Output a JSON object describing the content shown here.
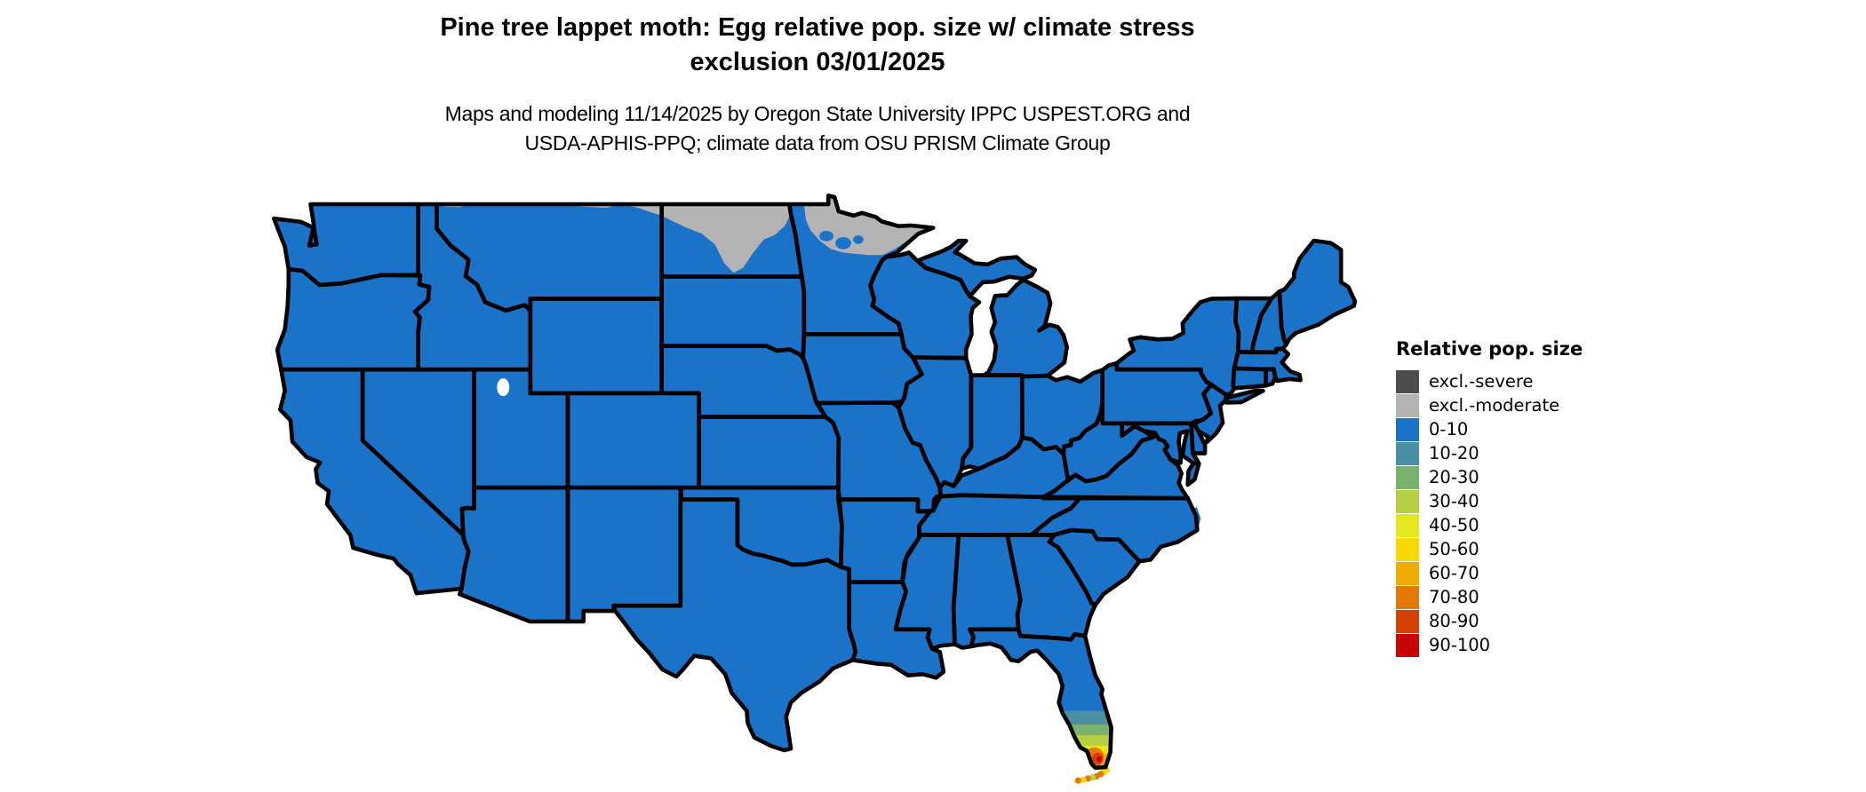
{
  "title": {
    "line1": "Pine tree lappet moth: Egg relative pop. size w/ climate stress",
    "line2": "exclusion 03/01/2025"
  },
  "subtitle": {
    "line1": "Maps and modeling 11/14/2025 by Oregon State University IPPC USPEST.ORG and",
    "line2": "USDA-APHIS-PPQ; climate data from OSU PRISM Climate Group"
  },
  "legend": {
    "title": "Relative pop. size",
    "items": [
      {
        "label": "excl.-severe",
        "color": "#4D4D4D"
      },
      {
        "label": "excl.-moderate",
        "color": "#B3B3B3"
      },
      {
        "label": "0-10",
        "color": "#1B73C9"
      },
      {
        "label": "10-20",
        "color": "#4B90A2"
      },
      {
        "label": "20-30",
        "color": "#79B16F"
      },
      {
        "label": "30-40",
        "color": "#B6CF44"
      },
      {
        "label": "40-50",
        "color": "#E4E71E"
      },
      {
        "label": "50-60",
        "color": "#F9D703"
      },
      {
        "label": "60-70",
        "color": "#F0AB02"
      },
      {
        "label": "70-80",
        "color": "#E57907"
      },
      {
        "label": "80-90",
        "color": "#D64005"
      },
      {
        "label": "90-100",
        "color": "#C90404"
      }
    ]
  },
  "chart_data": {
    "type": "heatmap",
    "title": "Pine tree lappet moth: Egg relative pop. size w/ climate stress exclusion 03/01/2025",
    "legend_title": "Relative pop. size",
    "classes": [
      "excl.-severe",
      "excl.-moderate",
      "0-10",
      "10-20",
      "20-30",
      "30-40",
      "40-50",
      "50-60",
      "60-70",
      "70-80",
      "80-90",
      "90-100"
    ],
    "regions": [
      {
        "area": "most of contiguous United States",
        "value": "0-10"
      },
      {
        "area": "northeastern Montana border strip",
        "value": "excl.-moderate"
      },
      {
        "area": "northern North Dakota (band dipping to center of state)",
        "value": "excl.-moderate"
      },
      {
        "area": "northern Minnesota and arrowhead",
        "value": "excl.-moderate"
      },
      {
        "area": "south-central Florida (approx. lat 27.0-27.6)",
        "value": "10-20"
      },
      {
        "area": "southern Florida (approx. lat 26.5-27.0)",
        "value": "20-30"
      },
      {
        "area": "southern Florida (approx. lat 26.1-26.5)",
        "value": "30-40"
      },
      {
        "area": "south Florida west fringe (approx. lat 25.9-26.1)",
        "value": "40-50 / 50-60"
      },
      {
        "area": "south Florida tip (approx. lat 25.5-25.9)",
        "value": "60-70"
      },
      {
        "area": "southeast Florida tip core",
        "value": "70-80 / 80-90 / 90-100"
      },
      {
        "area": "Florida Keys",
        "value": "50-60 / 60-70"
      }
    ]
  }
}
